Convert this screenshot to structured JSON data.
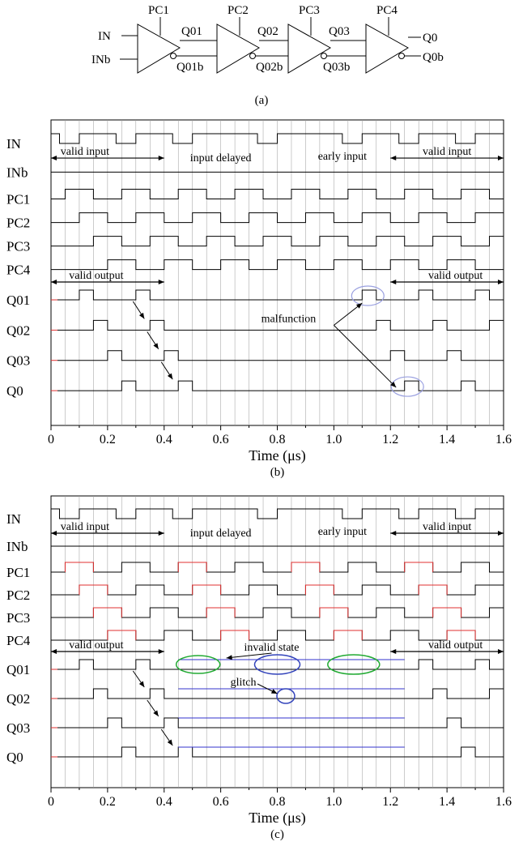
{
  "circuit": {
    "caption": "(a)",
    "clocks": [
      "PC1",
      "PC2",
      "PC3",
      "PC4"
    ],
    "inputs": [
      "IN",
      "INb"
    ],
    "stage_outputs": [
      [
        "Q01",
        "Q01b"
      ],
      [
        "Q02",
        "Q02b"
      ],
      [
        "Q03",
        "Q03b"
      ],
      [
        "Q0",
        "Q0b"
      ]
    ]
  },
  "panels": [
    {
      "id": "b",
      "caption": "(b)",
      "xlabel": "Time (μs)",
      "xticks": [
        "0",
        "0.2",
        "0.4",
        "0.6",
        "0.8",
        "1.0",
        "1.2",
        "1.4",
        "1.6"
      ],
      "xrange": [
        0,
        1.6
      ],
      "signals": [
        "IN",
        "INb",
        "PC1",
        "PC2",
        "PC3",
        "PC4",
        "Q01",
        "Q02",
        "Q03",
        "Q0"
      ],
      "annotations": {
        "valid_input_1": "valid input",
        "input_delayed": "input delayed",
        "early_input": "early input",
        "valid_input_2": "valid input",
        "valid_output_1": "valid output",
        "valid_output_2": "valid output",
        "malfunction": "malfunction"
      }
    },
    {
      "id": "c",
      "caption": "(c)",
      "xlabel": "Time (μs)",
      "xticks": [
        "0",
        "0.2",
        "0.4",
        "0.6",
        "0.8",
        "1.0",
        "1.2",
        "1.4",
        "1.6"
      ],
      "xrange": [
        0,
        1.6
      ],
      "signals": [
        "IN",
        "INb",
        "PC1",
        "PC2",
        "PC3",
        "PC4",
        "Q01",
        "Q02",
        "Q03",
        "Q0"
      ],
      "annotations": {
        "valid_input_1": "valid input",
        "input_delayed": "input delayed",
        "early_input": "early input",
        "valid_input_2": "valid input",
        "valid_output_1": "valid output",
        "valid_output_2": "valid output",
        "invalid_state": "invalid state",
        "glitch": "glitch"
      }
    }
  ],
  "colors": {
    "trace": "#000000",
    "trace_red": "#e03030",
    "trace_blue": "#3333cc",
    "ellipse_green": "#22aa33",
    "ellipse_blue": "#3344bb",
    "ellipse_lavender": "#9aa0e0",
    "grid": "#999999"
  }
}
